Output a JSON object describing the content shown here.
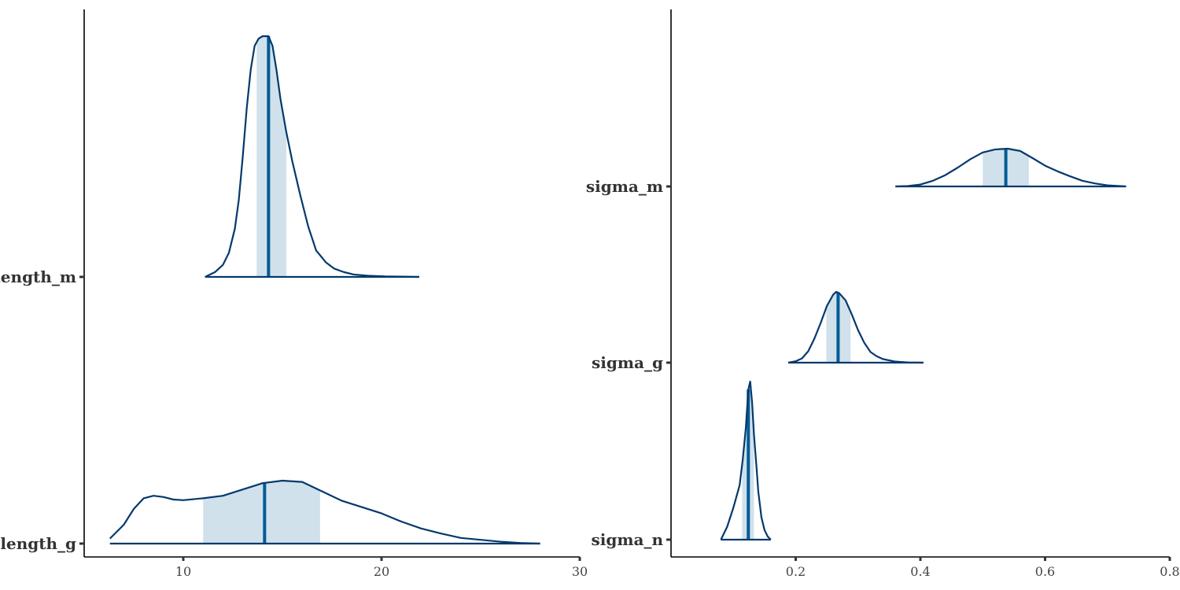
{
  "chart_data": [
    {
      "type": "area",
      "subtype": "density-ridges",
      "title": "",
      "xlabel": "",
      "ylabel": "",
      "xlim": [
        5,
        30
      ],
      "xticks": [
        10,
        20,
        30
      ],
      "grid": false,
      "series": [
        {
          "name": "length_m",
          "median": 14.3,
          "interval": [
            13.7,
            15.2
          ],
          "density": {
            "x": [
              11.1,
              11.6,
              12.0,
              12.3,
              12.6,
              12.8,
              13.0,
              13.2,
              13.4,
              13.6,
              13.8,
              14.0,
              14.2,
              14.3,
              14.5,
              14.7,
              14.9,
              15.2,
              15.5,
              15.9,
              16.3,
              16.7,
              17.2,
              17.6,
              18.1,
              18.6,
              19.3,
              20.2,
              21.9
            ],
            "y": [
              0.0,
              0.02,
              0.05,
              0.1,
              0.2,
              0.32,
              0.5,
              0.7,
              0.86,
              0.96,
              0.99,
              1.0,
              1.0,
              1.0,
              0.96,
              0.86,
              0.74,
              0.6,
              0.48,
              0.34,
              0.21,
              0.11,
              0.06,
              0.035,
              0.02,
              0.01,
              0.005,
              0.002,
              0.0
            ]
          }
        },
        {
          "name": "length_g",
          "median": 14.1,
          "interval": [
            11.0,
            16.9
          ],
          "density": {
            "x": [
              6.3,
              7.0,
              7.5,
              8.0,
              8.5,
              9.0,
              9.5,
              10.0,
              11.0,
              12.0,
              13.0,
              14.0,
              15.0,
              16.0,
              17.0,
              18.0,
              19.0,
              20.0,
              21.0,
              22.0,
              23.0,
              24.0,
              25.0,
              26.0,
              27.0,
              28.0
            ],
            "y": [
              0.08,
              0.3,
              0.55,
              0.72,
              0.76,
              0.74,
              0.7,
              0.69,
              0.72,
              0.76,
              0.86,
              0.96,
              1.0,
              0.98,
              0.83,
              0.68,
              0.58,
              0.48,
              0.35,
              0.24,
              0.16,
              0.09,
              0.06,
              0.03,
              0.01,
              0.0
            ]
          }
        }
      ]
    },
    {
      "type": "area",
      "subtype": "density-ridges",
      "title": "",
      "xlabel": "",
      "ylabel": "",
      "xlim": [
        0.0,
        0.8
      ],
      "xticks": [
        0.2,
        0.4,
        0.6,
        0.8
      ],
      "xtick_labels": [
        "0.2",
        "0.4",
        "0.6",
        "0.8"
      ],
      "grid": false,
      "series": [
        {
          "name": "sigma_m",
          "median": 0.537,
          "interval": [
            0.5,
            0.574
          ],
          "density": {
            "x": [
              0.36,
              0.38,
              0.4,
              0.42,
              0.44,
              0.46,
              0.48,
              0.5,
              0.52,
              0.54,
              0.56,
              0.58,
              0.6,
              0.62,
              0.64,
              0.66,
              0.68,
              0.7,
              0.73
            ],
            "y": [
              0.0,
              0.01,
              0.05,
              0.15,
              0.3,
              0.5,
              0.72,
              0.9,
              0.98,
              1.0,
              0.94,
              0.75,
              0.55,
              0.4,
              0.27,
              0.15,
              0.08,
              0.03,
              0.0
            ]
          }
        },
        {
          "name": "sigma_g",
          "median": 0.268,
          "interval": [
            0.249,
            0.288
          ],
          "density": {
            "x": [
              0.188,
              0.2,
              0.21,
              0.22,
              0.23,
              0.24,
              0.25,
              0.26,
              0.265,
              0.27,
              0.28,
              0.29,
              0.3,
              0.31,
              0.32,
              0.33,
              0.34,
              0.36,
              0.38,
              0.405
            ],
            "y": [
              0.0,
              0.02,
              0.06,
              0.16,
              0.34,
              0.56,
              0.8,
              0.96,
              1.0,
              0.98,
              0.88,
              0.68,
              0.46,
              0.28,
              0.15,
              0.09,
              0.05,
              0.015,
              0.003,
              0.0
            ]
          }
        },
        {
          "name": "sigma_n",
          "median": 0.124,
          "interval": [
            0.114,
            0.133
          ],
          "density": {
            "x": [
              0.08,
              0.09,
              0.1,
              0.105,
              0.11,
              0.115,
              0.12,
              0.124,
              0.127,
              0.13,
              0.133,
              0.137,
              0.14,
              0.145,
              0.15,
              0.155,
              0.16
            ],
            "y": [
              0.0,
              0.08,
              0.2,
              0.27,
              0.34,
              0.5,
              0.7,
              0.94,
              0.99,
              0.86,
              0.66,
              0.46,
              0.3,
              0.14,
              0.06,
              0.02,
              0.0
            ]
          }
        }
      ]
    }
  ]
}
